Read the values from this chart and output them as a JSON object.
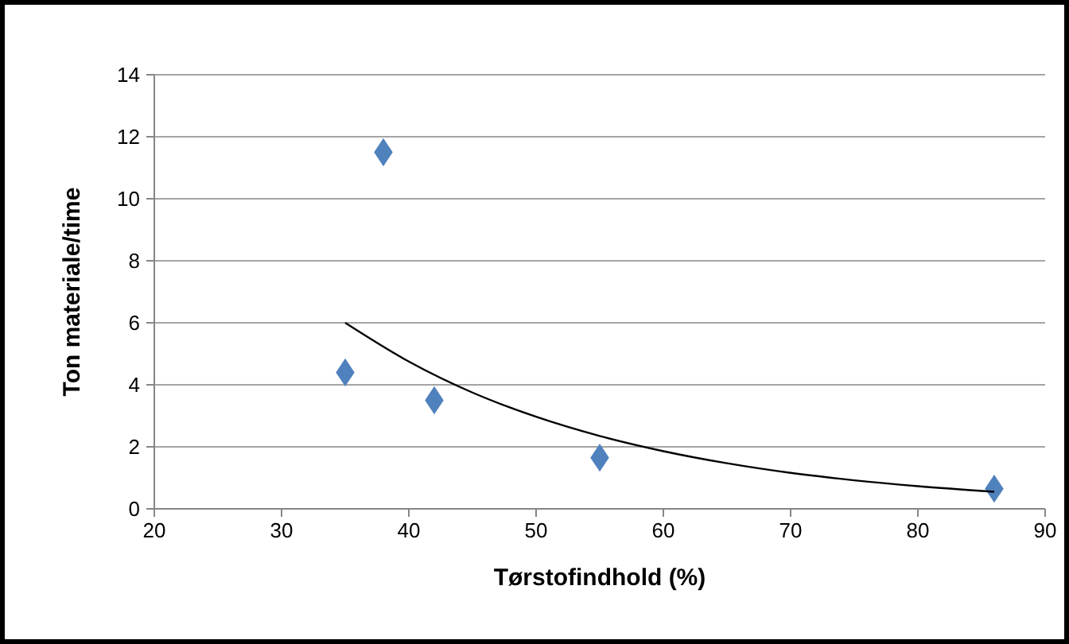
{
  "chart_data": {
    "type": "scatter",
    "xlabel": "Tørstofindhold (%)",
    "ylabel": "Ton materiale/time",
    "xlim": [
      20,
      90
    ],
    "xticks": [
      20,
      30,
      40,
      50,
      60,
      70,
      80,
      90
    ],
    "ylim": [
      0,
      14
    ],
    "yticks": [
      0,
      2,
      4,
      6,
      8,
      10,
      12,
      14
    ],
    "grid": "y",
    "series": [
      {
        "color": "#4f81bd",
        "marker": "diamond",
        "x": [
          35,
          38,
          42,
          55,
          86
        ],
        "values": [
          4.4,
          11.5,
          3.5,
          1.65,
          0.65
        ]
      },
      {
        "type": "line",
        "marker": "none",
        "color": "#000000",
        "x": [
          35,
          40,
          45,
          50,
          55,
          60,
          65,
          70,
          75,
          80,
          86
        ],
        "values": [
          6.0,
          4.75,
          3.75,
          2.97,
          2.35,
          1.86,
          1.47,
          1.16,
          0.92,
          0.73,
          0.55
        ]
      }
    ]
  }
}
